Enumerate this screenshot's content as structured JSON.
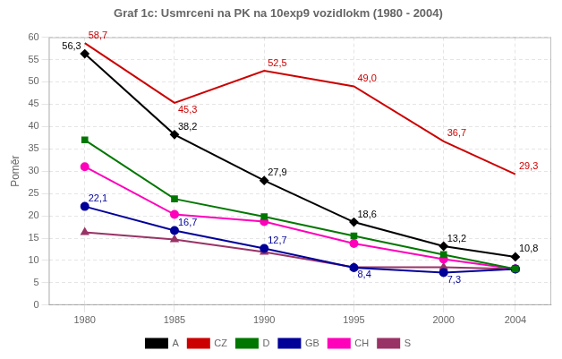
{
  "chart_data": {
    "type": "line",
    "title": "Graf 1c: Usmrceni na PK na 10exp9 vozidlokm (1980 - 2004)",
    "y_label": "Poměr",
    "x": [
      1980,
      1985,
      1990,
      1995,
      2000,
      2004
    ],
    "series": [
      {
        "name": "A",
        "color": "#000000",
        "marker": "diamond",
        "values": [
          56.3,
          38.2,
          27.9,
          18.6,
          13.2,
          10.8
        ]
      },
      {
        "name": "CZ",
        "color": "#cc0000",
        "marker": "none",
        "values": [
          58.7,
          45.3,
          52.5,
          49.0,
          36.7,
          29.3
        ]
      },
      {
        "name": "D",
        "color": "#007700",
        "marker": "square",
        "values": [
          37.0,
          23.8,
          19.8,
          15.5,
          11.3,
          8.1
        ]
      },
      {
        "name": "GB",
        "color": "#000099",
        "marker": "circle",
        "values": [
          22.1,
          16.7,
          12.7,
          8.4,
          7.3,
          8.1
        ]
      },
      {
        "name": "CH",
        "color": "#ff00bb",
        "marker": "circle",
        "values": [
          31.0,
          20.3,
          18.7,
          13.8,
          10.3,
          8.1
        ]
      },
      {
        "name": "S",
        "color": "#993366",
        "marker": "triangle",
        "values": [
          16.3,
          14.7,
          11.9,
          8.5,
          8.5,
          8.1
        ]
      }
    ],
    "annotations": [
      {
        "label": "58,7",
        "x": 1980,
        "y": 58.7,
        "color": "#cc0000"
      },
      {
        "label": "45,3",
        "x": 1985,
        "y": 45.3,
        "color": "#cc0000"
      },
      {
        "label": "52,5",
        "x": 1990,
        "y": 52.5,
        "color": "#cc0000"
      },
      {
        "label": "49,0",
        "x": 1995,
        "y": 49.0,
        "color": "#cc0000"
      },
      {
        "label": "36,7",
        "x": 2000,
        "y": 36.7,
        "color": "#cc0000"
      },
      {
        "label": "29,3",
        "x": 2004,
        "y": 29.3,
        "color": "#cc0000"
      },
      {
        "label": "56,3",
        "x": 1980,
        "y": 56.3,
        "color": "#000000"
      },
      {
        "label": "38,2",
        "x": 1985,
        "y": 38.2,
        "color": "#000000"
      },
      {
        "label": "27,9",
        "x": 1990,
        "y": 27.9,
        "color": "#000000"
      },
      {
        "label": "18,6",
        "x": 1995,
        "y": 18.6,
        "color": "#000000"
      },
      {
        "label": "13,2",
        "x": 2000,
        "y": 13.2,
        "color": "#000000"
      },
      {
        "label": "10,8",
        "x": 2004,
        "y": 10.8,
        "color": "#000000"
      },
      {
        "label": "22,1",
        "x": 1980,
        "y": 22.1,
        "color": "#000099"
      },
      {
        "label": "16,7",
        "x": 1985,
        "y": 16.7,
        "color": "#000099"
      },
      {
        "label": "12,7",
        "x": 1990,
        "y": 12.7,
        "color": "#000099"
      },
      {
        "label": "8,4",
        "x": 1995,
        "y": 8.4,
        "color": "#000099"
      },
      {
        "label": "7,3",
        "x": 2000,
        "y": 7.3,
        "color": "#000099"
      }
    ],
    "xlim": [
      1978,
      2006
    ],
    "xticks": [
      1980,
      1985,
      1990,
      1995,
      2000,
      2004
    ],
    "ylim": [
      0,
      60
    ],
    "yticks": [
      0,
      5,
      10,
      15,
      20,
      25,
      30,
      35,
      40,
      45,
      50,
      55,
      60
    ],
    "grid": true,
    "legend": "bottom"
  }
}
